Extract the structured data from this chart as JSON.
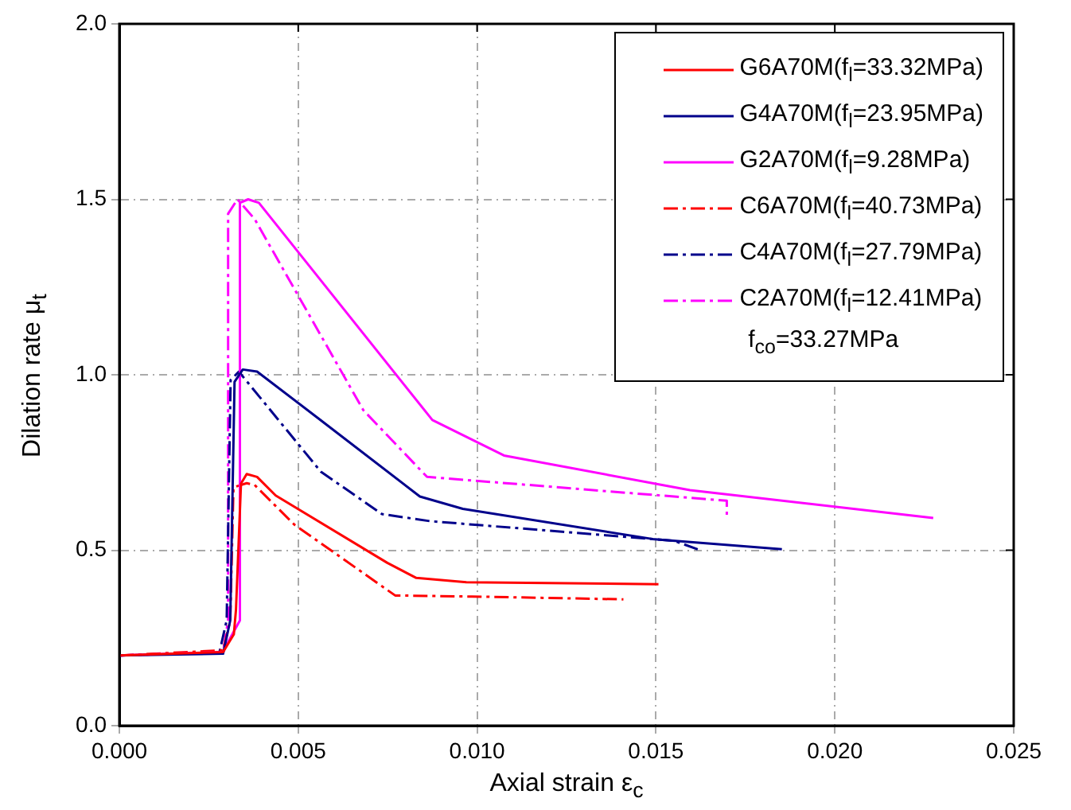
{
  "chart_data": {
    "type": "line",
    "xlabel": "Axial strain ε$_{c}$",
    "ylabel": "Dilation rate μ$_{t}$",
    "xlim": [
      0,
      0.025
    ],
    "xticks": [
      {
        "value": 0,
        "label": "0.000"
      },
      {
        "value": 0.005,
        "label": "0.005"
      },
      {
        "value": 0.01,
        "label": "0.010"
      },
      {
        "value": 0.015,
        "label": "0.015"
      },
      {
        "value": 0.02,
        "label": "0.020"
      },
      {
        "value": 0.025,
        "label": "0.025"
      }
    ],
    "ylim": [
      0,
      2
    ],
    "yticks": [
      {
        "value": 0,
        "label": "0.0"
      },
      {
        "value": 0.5,
        "label": "0.5"
      },
      {
        "value": 1,
        "label": "1.0"
      },
      {
        "value": 1.5,
        "label": "1.5"
      },
      {
        "value": 2,
        "label": "2.0"
      }
    ],
    "grid": true,
    "legend": "top right",
    "marker": "none",
    "annotations": [
      "f$_{co}$=33.27MPa"
    ],
    "series": [
      {
        "name": "G6A70M(f$_{l}$=33.32MPa)",
        "color": "#ff0000",
        "line_style": "solid",
        "x": [
          0,
          0.0029,
          0.0032,
          0.00326,
          0.0034,
          0.00356,
          0.00385,
          0.00437,
          0.00749,
          0.0083,
          0.0097,
          0.01507
        ],
        "values": [
          0.2,
          0.21,
          0.26,
          0.33,
          0.69,
          0.717,
          0.709,
          0.656,
          0.464,
          0.421,
          0.409,
          0.403
        ]
      },
      {
        "name": "G4A70M(f$_{l}$=23.95MPa)",
        "color": "#00008b",
        "line_style": "solid",
        "x": [
          0,
          0.0029,
          0.0031,
          0.00322,
          0.00345,
          0.00385,
          0.00556,
          0.0084,
          0.0096,
          0.0149,
          0.01852
        ],
        "values": [
          0.2,
          0.205,
          0.3,
          0.98,
          1.015,
          1.009,
          0.876,
          0.653,
          0.618,
          0.532,
          0.503
        ]
      },
      {
        "name": "G2A70M(f$_{l}$=9.28MPa)",
        "color": "#ff00ff",
        "line_style": "solid",
        "x": [
          0,
          0.0029,
          0.0031,
          0.00337,
          0.00337,
          0.0036,
          0.0039,
          0.00875,
          0.01075,
          0.01595,
          0.02275
        ],
        "values": [
          0.2,
          0.21,
          0.25,
          0.3,
          1.49,
          1.5,
          1.49,
          0.871,
          0.77,
          0.671,
          0.592
        ]
      },
      {
        "name": "C6A70M(f$_{l}$=40.73MPa)",
        "color": "#ff0000",
        "line_style": "dashed",
        "x": [
          0,
          0.0029,
          0.0031,
          0.00319,
          0.00356,
          0.00378,
          0.00489,
          0.00771,
          0.00986,
          0.01409
        ],
        "values": [
          0.2,
          0.215,
          0.3,
          0.679,
          0.691,
          0.686,
          0.573,
          0.371,
          0.368,
          0.36
        ]
      },
      {
        "name": "C4A70M(f$_{l}$=27.79MPa)",
        "color": "#00008b",
        "line_style": "dashed",
        "x": [
          0,
          0.0028,
          0.003,
          0.00311,
          0.00334,
          0.00563,
          0.00734,
          0.00867,
          0.0155,
          0.01624
        ],
        "values": [
          0.2,
          0.21,
          0.3,
          0.985,
          1.009,
          0.724,
          0.603,
          0.583,
          0.527,
          0.5
        ]
      },
      {
        "name": "C2A70M(f$_{l}$=12.41MPa)",
        "color": "#ff00ff",
        "line_style": "dashed",
        "x": [
          0,
          0.0029,
          0.00304,
          0.00304,
          0.0033,
          0.00378,
          0.00682,
          0.0086,
          0.01698,
          0.01698
        ],
        "values": [
          0.2,
          0.21,
          0.3,
          1.459,
          1.5,
          1.444,
          0.899,
          0.709,
          0.641,
          0.588
        ]
      }
    ]
  }
}
